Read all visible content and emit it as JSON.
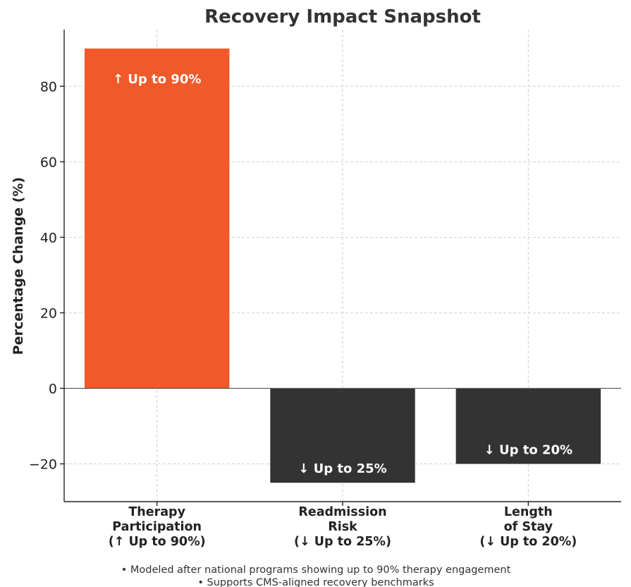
{
  "chart_data": {
    "type": "bar",
    "title": "Recovery Impact Snapshot",
    "xlabel": "",
    "ylabel": "Percentage Change (%)",
    "ylim": [
      -30,
      95
    ],
    "yticks": [
      -20,
      0,
      20,
      40,
      60,
      80
    ],
    "ytick_labels": [
      "−20",
      "0",
      "20",
      "40",
      "60",
      "80"
    ],
    "grid": true,
    "categories": [
      [
        "Therapy",
        "Participation",
        "(↑ Up to 90%)"
      ],
      [
        "Readmission",
        "Risk",
        "(↓ Up to 25%)"
      ],
      [
        "Length",
        "of Stay",
        "(↓ Up to 20%)"
      ]
    ],
    "values": [
      90,
      -25,
      -20
    ],
    "data_labels": [
      "↑ Up to 90%",
      "↓ Up to 25%",
      "↓ Up to 20%"
    ],
    "colors": [
      "#f05a2b",
      "#333333",
      "#333333"
    ]
  },
  "notes": [
    "• Modeled after national programs showing up to 90% therapy engagement",
    "• Supports CMS-aligned recovery benchmarks"
  ]
}
